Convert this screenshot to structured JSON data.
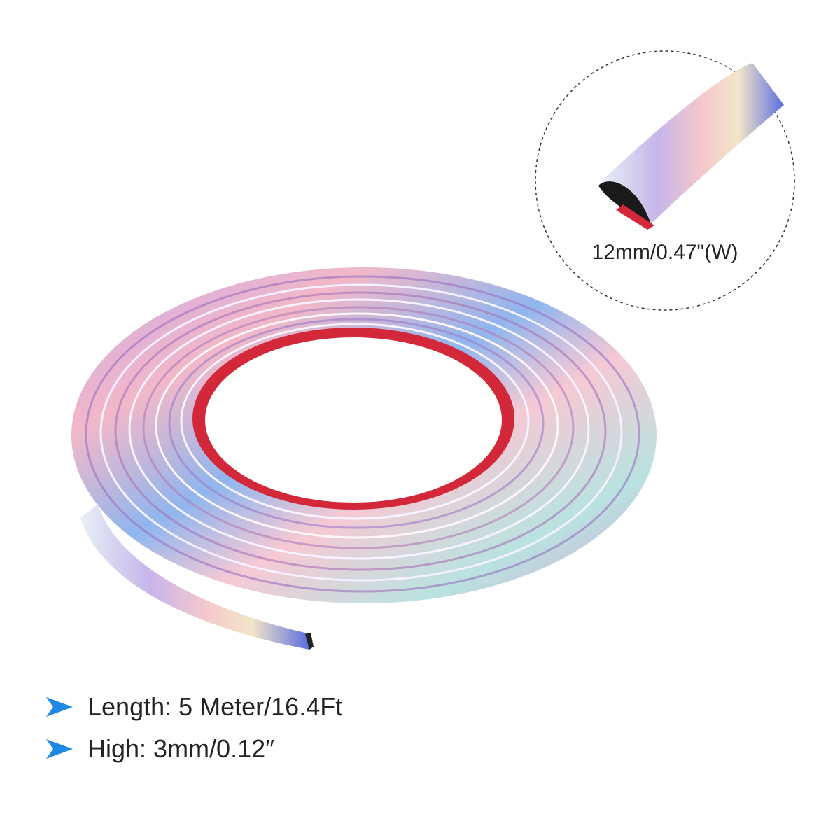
{
  "callout": {
    "label": "12mm/0.47\"(W)"
  },
  "specs": [
    {
      "text": "Length: 5 Meter/16.4Ft"
    },
    {
      "text": "High: 3mm/0.12″"
    }
  ]
}
